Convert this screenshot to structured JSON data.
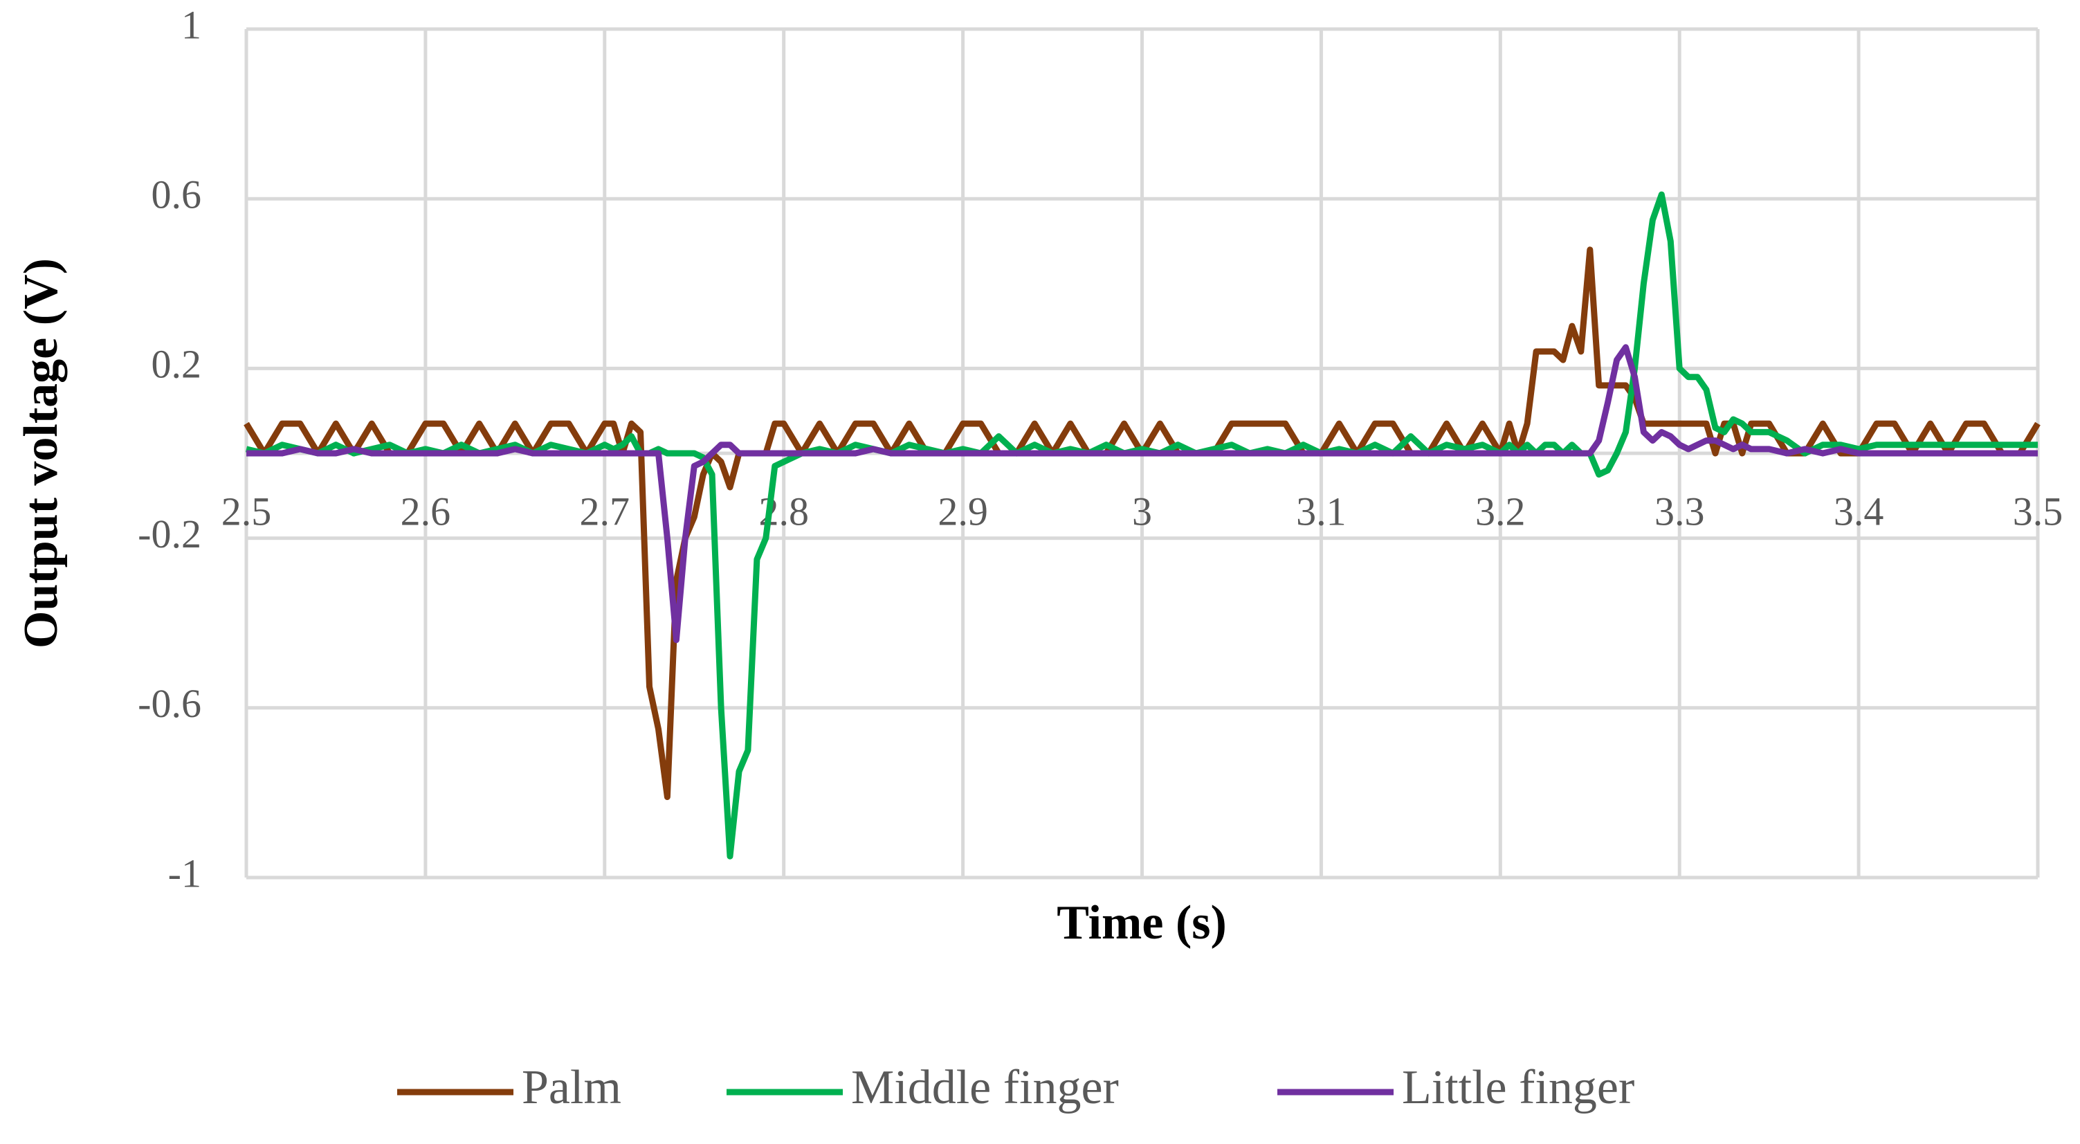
{
  "chart_data": {
    "type": "line",
    "xlabel": "Time (s)",
    "ylabel": "Output voltage (V)",
    "x": [
      2.5,
      2.51,
      2.52,
      2.53,
      2.54,
      2.55,
      2.56,
      2.57,
      2.58,
      2.59,
      2.6,
      2.61,
      2.62,
      2.63,
      2.64,
      2.65,
      2.66,
      2.67,
      2.68,
      2.69,
      2.7,
      2.705,
      2.71,
      2.715,
      2.72,
      2.725,
      2.73,
      2.735,
      2.74,
      2.745,
      2.75,
      2.755,
      2.76,
      2.765,
      2.77,
      2.775,
      2.78,
      2.785,
      2.79,
      2.795,
      2.8,
      2.81,
      2.82,
      2.83,
      2.84,
      2.85,
      2.86,
      2.87,
      2.88,
      2.89,
      2.9,
      2.91,
      2.92,
      2.93,
      2.94,
      2.95,
      2.96,
      2.97,
      2.98,
      2.99,
      3,
      3.01,
      3.02,
      3.03,
      3.04,
      3.05,
      3.06,
      3.07,
      3.08,
      3.09,
      3.1,
      3.11,
      3.12,
      3.13,
      3.14,
      3.15,
      3.16,
      3.17,
      3.18,
      3.19,
      3.2,
      3.205,
      3.21,
      3.215,
      3.22,
      3.225,
      3.23,
      3.235,
      3.24,
      3.245,
      3.25,
      3.255,
      3.26,
      3.265,
      3.27,
      3.275,
      3.28,
      3.285,
      3.29,
      3.295,
      3.3,
      3.305,
      3.31,
      3.315,
      3.32,
      3.325,
      3.33,
      3.335,
      3.34,
      3.35,
      3.36,
      3.37,
      3.38,
      3.39,
      3.4,
      3.41,
      3.42,
      3.43,
      3.44,
      3.45,
      3.46,
      3.47,
      3.48,
      3.49,
      3.5
    ],
    "series": [
      {
        "name": "Palm",
        "color": "#843c0c",
        "values": [
          0.07,
          0,
          0.07,
          0.07,
          0,
          0.07,
          0,
          0.07,
          0,
          0,
          0.07,
          0.07,
          0,
          0.07,
          0,
          0.07,
          0,
          0.07,
          0.07,
          0,
          0.07,
          0.07,
          0,
          0.07,
          0.05,
          -0.55,
          -0.65,
          -0.81,
          -0.3,
          -0.2,
          -0.15,
          -0.05,
          0,
          -0.02,
          -0.08,
          0,
          0,
          0,
          0,
          0.07,
          0.07,
          0,
          0.07,
          0,
          0.07,
          0.07,
          0,
          0.07,
          0,
          0,
          0.07,
          0.07,
          0,
          0,
          0.07,
          0,
          0.07,
          0,
          0,
          0.07,
          0,
          0.07,
          0,
          0,
          0,
          0.07,
          0.07,
          0.07,
          0.07,
          0,
          0,
          0.07,
          0,
          0.07,
          0.07,
          0,
          0,
          0.07,
          0,
          0.07,
          0,
          0.07,
          0,
          0.07,
          0.24,
          0.24,
          0.24,
          0.22,
          0.3,
          0.24,
          0.48,
          0.16,
          0.16,
          0.16,
          0.16,
          0.13,
          0.07,
          0.07,
          0.07,
          0.07,
          0.07,
          0.07,
          0.07,
          0.07,
          0,
          0.07,
          0.07,
          0,
          0.07,
          0.07,
          0,
          0,
          0.07,
          0,
          0,
          0.07,
          0.07,
          0,
          0.07,
          0,
          0.07,
          0.07,
          0,
          0,
          0.07
        ]
      },
      {
        "name": "Middle finger",
        "color": "#00b050",
        "values": [
          0.01,
          0,
          0.02,
          0.01,
          0,
          0.02,
          0,
          0.01,
          0.02,
          0,
          0.01,
          0,
          0.02,
          0,
          0.01,
          0.02,
          0,
          0.02,
          0.01,
          0,
          0.02,
          0.01,
          0.02,
          0.04,
          0,
          0,
          0.01,
          0,
          0,
          0,
          0,
          -0.01,
          -0.05,
          -0.6,
          -0.95,
          -0.75,
          -0.7,
          -0.25,
          -0.2,
          -0.03,
          -0.02,
          0,
          0.01,
          0,
          0.02,
          0.01,
          0,
          0.02,
          0.01,
          0,
          0.01,
          0,
          0.04,
          0,
          0.02,
          0,
          0.01,
          0,
          0.02,
          0,
          0.01,
          0,
          0.02,
          0,
          0.01,
          0.02,
          0,
          0.01,
          0,
          0.02,
          0,
          0.01,
          0,
          0.02,
          0,
          0.04,
          0,
          0.02,
          0.01,
          0.02,
          0,
          0.02,
          0,
          0.02,
          0,
          0.02,
          0.02,
          0,
          0.02,
          0,
          0,
          -0.05,
          -0.04,
          0,
          0.05,
          0.2,
          0.4,
          0.55,
          0.61,
          0.5,
          0.2,
          0.18,
          0.18,
          0.15,
          0.06,
          0.05,
          0.08,
          0.07,
          0.05,
          0.05,
          0.03,
          0,
          0.02,
          0.02,
          0.01,
          0.02,
          0.02,
          0.02,
          0.02,
          0.02,
          0.02,
          0.02,
          0.02,
          0.02,
          0.02
        ]
      },
      {
        "name": "Little finger",
        "color": "#7030a0",
        "values": [
          0,
          0,
          0,
          0.01,
          0,
          0,
          0.01,
          0,
          0,
          0,
          0,
          0,
          0,
          0,
          0,
          0.01,
          0,
          0,
          0,
          0,
          0,
          0,
          0,
          0,
          0,
          0,
          0,
          -0.2,
          -0.44,
          -0.2,
          -0.03,
          -0.02,
          0,
          0.02,
          0.02,
          0,
          0,
          0,
          0,
          0,
          0,
          0,
          0,
          0,
          0,
          0.01,
          0,
          0,
          0,
          0,
          0,
          0,
          0,
          0,
          0,
          0,
          0,
          0,
          0,
          0,
          0,
          0,
          0,
          0,
          0,
          0,
          0,
          0,
          0,
          0,
          0,
          0,
          0,
          0,
          0,
          0,
          0,
          0,
          0,
          0,
          0,
          0,
          0,
          0,
          0,
          0,
          0,
          0,
          0,
          0,
          0,
          0.03,
          0.12,
          0.22,
          0.25,
          0.18,
          0.05,
          0.03,
          0.05,
          0.04,
          0.02,
          0.01,
          0.02,
          0.03,
          0.03,
          0.02,
          0.01,
          0.02,
          0.01,
          0.01,
          0,
          0.01,
          0,
          0.01,
          0,
          0,
          0,
          0,
          0,
          0,
          0,
          0,
          0,
          0,
          0
        ]
      }
    ],
    "xlim": [
      2.5,
      3.5
    ],
    "xticks": [
      2.5,
      2.6,
      2.7,
      2.8,
      2.9,
      3,
      3.1,
      3.2,
      3.3,
      3.4,
      3.5
    ],
    "ylim": [
      -1,
      1
    ],
    "yticks": [
      -1,
      -0.6,
      -0.2,
      0.2,
      0.6,
      1
    ],
    "grid": true,
    "legend": "bottom"
  }
}
